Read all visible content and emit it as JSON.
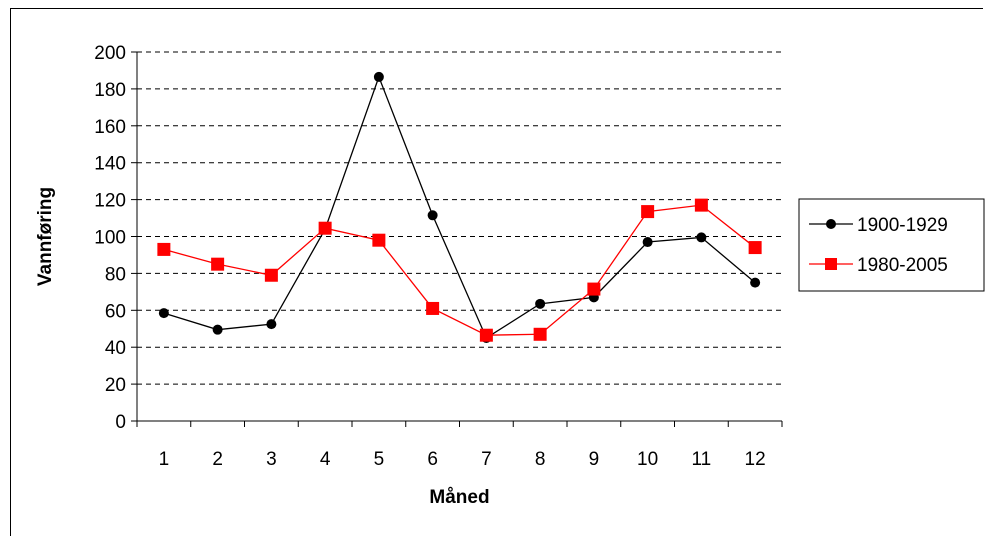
{
  "chart_data": {
    "type": "line",
    "title": "",
    "xlabel": "Måned",
    "ylabel": "Vannføring",
    "categories": [
      "1",
      "2",
      "3",
      "4",
      "5",
      "6",
      "7",
      "8",
      "9",
      "10",
      "11",
      "12"
    ],
    "ylim": [
      0,
      200
    ],
    "yticks": [
      0,
      20,
      40,
      60,
      80,
      100,
      120,
      140,
      160,
      180,
      200
    ],
    "grid": "horizontal dashed",
    "legend_position": "right",
    "series": [
      {
        "name": "1900-1929",
        "color": "#000000",
        "marker": "circle",
        "values": [
          58.5,
          49.5,
          52.5,
          104,
          186.5,
          111.5,
          45,
          63.5,
          67,
          97,
          99.5,
          75
        ]
      },
      {
        "name": "1980-2005",
        "color": "#ff0000",
        "marker": "square",
        "values": [
          93,
          85,
          79,
          104.5,
          98,
          61,
          46.5,
          47,
          71.5,
          113.5,
          117,
          94
        ]
      }
    ]
  }
}
